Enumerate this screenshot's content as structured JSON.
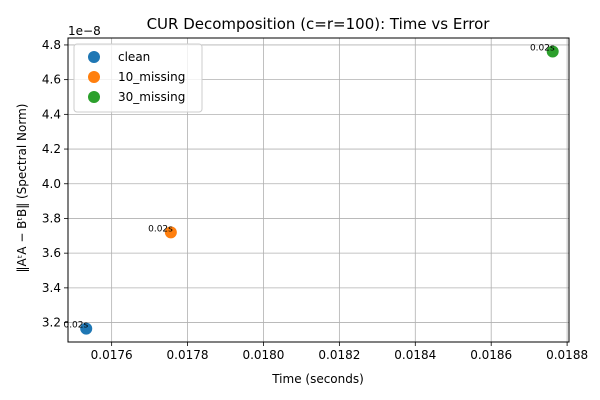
{
  "chart_data": {
    "type": "scatter",
    "title": "CUR Decomposition (c=r=100): Time vs Error",
    "xlabel": "Time (seconds)",
    "ylabel": "‖AᵗA − BᵗB‖ (Spectral Norm)",
    "y_offset_text": "1e−8",
    "xlim": [
      0.017485,
      0.018805
    ],
    "ylim": [
      3.088,
      4.84
    ],
    "xticks": [
      0.0176,
      0.0178,
      0.018,
      0.0182,
      0.0184,
      0.0186,
      0.0188
    ],
    "xtick_labels": [
      "0.0176",
      "0.0178",
      "0.0180",
      "0.0182",
      "0.0184",
      "0.0186",
      "0.0188"
    ],
    "yticks": [
      3.2,
      3.4,
      3.6,
      3.8,
      4.0,
      4.2,
      4.4,
      4.6,
      4.8
    ],
    "ytick_labels": [
      "3.2",
      "3.4",
      "3.6",
      "3.8",
      "4.0",
      "4.2",
      "4.4",
      "4.6",
      "4.8"
    ],
    "grid": true,
    "legend_position": "top-left",
    "series": [
      {
        "name": "clean",
        "color": "#1f77b4",
        "x": [
          0.017533
        ],
        "y": [
          3.165
        ],
        "annotation": "0.02s"
      },
      {
        "name": "10_missing",
        "color": "#ff7f0e",
        "x": [
          0.017756
        ],
        "y": [
          3.72
        ],
        "annotation": "0.02s"
      },
      {
        "name": "30_missing",
        "color": "#2ca02c",
        "x": [
          0.018762
        ],
        "y": [
          4.762
        ],
        "annotation": "0.02s"
      }
    ]
  }
}
